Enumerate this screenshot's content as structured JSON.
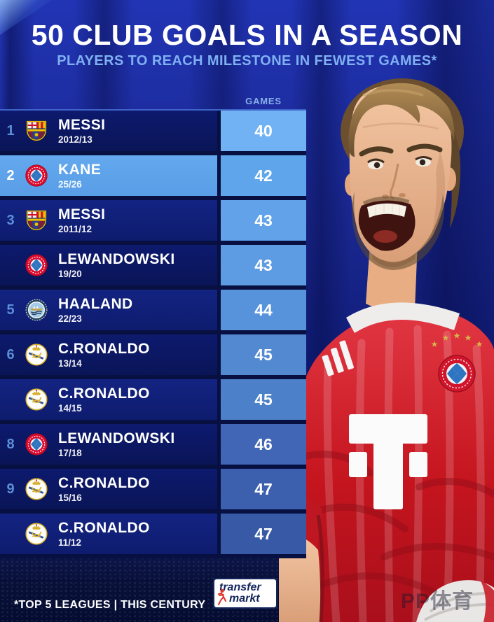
{
  "header": {
    "title": "50 CLUB GOALS IN A SEASON",
    "subtitle": "PLAYERS TO REACH MILESTONE IN FEWEST GAMES*"
  },
  "table": {
    "games_header": "GAMES",
    "rows": [
      {
        "rank": "1",
        "player": "MESSI",
        "season": "2012/13",
        "club": "barcelona",
        "games": "40",
        "highlight": false
      },
      {
        "rank": "2",
        "player": "KANE",
        "season": "25/26",
        "club": "bayern-munich",
        "games": "42",
        "highlight": true
      },
      {
        "rank": "3",
        "player": "MESSI",
        "season": "2011/12",
        "club": "barcelona",
        "games": "43",
        "highlight": false
      },
      {
        "rank": "",
        "player": "LEWANDOWSKI",
        "season": "19/20",
        "club": "bayern-munich",
        "games": "43",
        "highlight": false
      },
      {
        "rank": "5",
        "player": "HAALAND",
        "season": "22/23",
        "club": "manchester-city",
        "games": "44",
        "highlight": false
      },
      {
        "rank": "6",
        "player": "C.RONALDO",
        "season": "13/14",
        "club": "real-madrid",
        "games": "45",
        "highlight": false
      },
      {
        "rank": "",
        "player": "C.RONALDO",
        "season": "14/15",
        "club": "real-madrid",
        "games": "45",
        "highlight": false
      },
      {
        "rank": "8",
        "player": "LEWANDOWSKI",
        "season": "17/18",
        "club": "bayern-munich",
        "games": "46",
        "highlight": false
      },
      {
        "rank": "9",
        "player": "C.RONALDO",
        "season": "15/16",
        "club": "real-madrid",
        "games": "47",
        "highlight": false
      },
      {
        "rank": "",
        "player": "C.RONALDO",
        "season": "11/12",
        "club": "real-madrid",
        "games": "47",
        "highlight": false
      }
    ]
  },
  "chart_data": {
    "type": "table",
    "title": "50 CLUB GOALS IN A SEASON",
    "subtitle": "PLAYERS TO REACH MILESTONE IN FEWEST GAMES*",
    "columns": [
      "rank",
      "player",
      "season",
      "club",
      "games"
    ],
    "categories": [
      "MESSI 2012/13",
      "KANE 25/26",
      "MESSI 2011/12",
      "LEWANDOWSKI 19/20",
      "HAALAND 22/23",
      "C.RONALDO 13/14",
      "C.RONALDO 14/15",
      "LEWANDOWSKI 17/18",
      "C.RONALDO 15/16",
      "C.RONALDO 11/12"
    ],
    "values": [
      40,
      42,
      43,
      43,
      44,
      45,
      45,
      46,
      47,
      47
    ],
    "highlighted_row": "KANE 25/26",
    "value_label": "GAMES"
  },
  "footer": {
    "note": "*TOP 5 LEAGUES | THIS CENTURY",
    "logo_line1": "transfer",
    "logo_line2": "markt",
    "watermark": "PP体育"
  },
  "image": {
    "description": "Harry Kane celebrating and shouting in FC Bayern München red home shirt with Telekom T logo, adidas stripes, club crest and five gold stars"
  },
  "colors": {
    "accent_highlight": "#5fa5ec",
    "title": "#ffffff",
    "subtitle": "#7fb0f2",
    "rank": "#5c8fd8",
    "games_label": "#8ab0e8",
    "table_backdrop": "#071041",
    "bottom_line": "#5d8fdc",
    "crowd_bg": "#081038",
    "tm_navy": "#15265c",
    "tm_red": "#e0352c",
    "row_shades": [
      "dark",
      "highlight",
      "medium",
      "dark",
      "medium",
      "dark",
      "medium",
      "dark",
      "dark",
      "medium"
    ],
    "games_cells": [
      "#71b2f4",
      "#5fa5ec",
      "#61a2e9",
      "#5d9be2",
      "#5793da",
      "#5289d1",
      "#4c80c8",
      "#4166b5",
      "#3c60ae",
      "#3859a6"
    ]
  }
}
